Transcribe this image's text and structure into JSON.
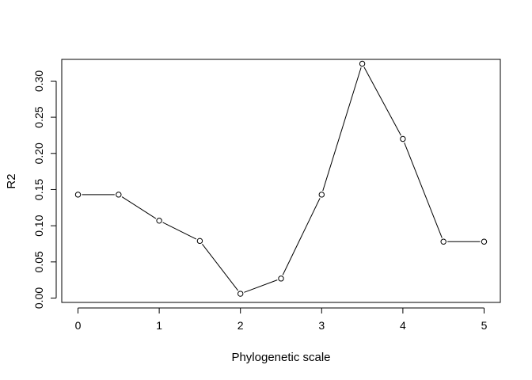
{
  "chart_data": {
    "type": "line",
    "title": "",
    "xlabel": "Phylogenetic scale",
    "ylabel": "R2",
    "x": [
      0,
      0.5,
      1,
      1.5,
      2,
      2.5,
      3,
      3.5,
      4,
      4.5,
      5
    ],
    "series": [
      {
        "values": [
          0.143,
          0.143,
          0.107,
          0.079,
          0.006,
          0.027,
          0.143,
          0.324,
          0.22,
          0.078,
          0.078
        ]
      }
    ],
    "xticks": [
      0,
      1,
      2,
      3,
      4,
      5
    ],
    "xtick_labels": [
      "0",
      "1",
      "2",
      "3",
      "4",
      "5"
    ],
    "yticks": [
      0.0,
      0.05,
      0.1,
      0.15,
      0.2,
      0.25,
      0.3
    ],
    "ytick_labels": [
      "0.00",
      "0.05",
      "0.10",
      "0.15",
      "0.20",
      "0.25",
      "0.30"
    ],
    "xlim": [
      -0.2,
      5.2
    ],
    "ylim": [
      -0.006,
      0.33
    ],
    "markers": "open-circle",
    "line_color": "#000000",
    "grid": false,
    "legend": "none"
  }
}
